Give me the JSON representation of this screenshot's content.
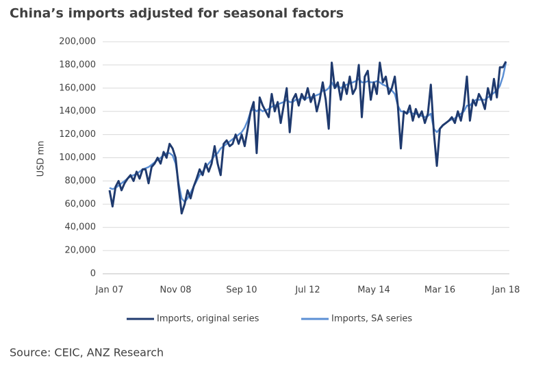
{
  "chart_data": {
    "type": "line",
    "title": "China’s imports adjusted for seasonal factors",
    "y_label": "USD mn",
    "source": "Source: CEIC, ANZ Research",
    "categories": [
      "Jan 07",
      null,
      null,
      null,
      null,
      null,
      null,
      null,
      null,
      null,
      null,
      null,
      null,
      null,
      null,
      null,
      null,
      null,
      null,
      null,
      null,
      null,
      "Nov 08",
      null,
      null,
      null,
      null,
      null,
      null,
      null,
      null,
      null,
      null,
      null,
      null,
      null,
      null,
      null,
      null,
      null,
      null,
      null,
      null,
      null,
      "Sep 10",
      null,
      null,
      null,
      null,
      null,
      null,
      null,
      null,
      null,
      null,
      null,
      null,
      null,
      null,
      null,
      null,
      null,
      null,
      null,
      null,
      null,
      "Jul 12",
      null,
      null,
      null,
      null,
      null,
      null,
      null,
      null,
      null,
      null,
      null,
      null,
      null,
      null,
      null,
      null,
      null,
      null,
      null,
      null,
      null,
      "May 14",
      null,
      null,
      null,
      null,
      null,
      null,
      null,
      null,
      null,
      null,
      null,
      null,
      null,
      null,
      null,
      null,
      null,
      null,
      null,
      null,
      null,
      "Mar 16",
      null,
      null,
      null,
      null,
      null,
      null,
      null,
      null,
      null,
      null,
      null,
      null,
      null,
      null,
      null,
      null,
      null,
      null,
      null,
      null,
      null,
      "Jan 18"
    ],
    "series": [
      {
        "name": "Imports, original series",
        "color": "#1f3a6e",
        "values": [
          72000,
          58000,
          75000,
          80000,
          72000,
          78000,
          82000,
          85000,
          80000,
          88000,
          82000,
          90000,
          90000,
          78000,
          92000,
          95000,
          100000,
          95000,
          105000,
          100000,
          112000,
          108000,
          100000,
          75000,
          52000,
          60000,
          72000,
          65000,
          75000,
          82000,
          90000,
          85000,
          95000,
          88000,
          95000,
          110000,
          95000,
          85000,
          112000,
          115000,
          110000,
          112000,
          120000,
          112000,
          120000,
          110000,
          125000,
          140000,
          148000,
          104000,
          152000,
          145000,
          140000,
          135000,
          155000,
          140000,
          148000,
          130000,
          145000,
          160000,
          122000,
          150000,
          155000,
          145000,
          155000,
          150000,
          160000,
          148000,
          155000,
          140000,
          150000,
          165000,
          150000,
          125000,
          182000,
          160000,
          165000,
          150000,
          165000,
          155000,
          170000,
          155000,
          160000,
          180000,
          135000,
          170000,
          175000,
          150000,
          165000,
          155000,
          182000,
          165000,
          170000,
          155000,
          160000,
          170000,
          145000,
          108000,
          140000,
          138000,
          145000,
          132000,
          142000,
          135000,
          140000,
          130000,
          138000,
          163000,
          122000,
          93000,
          125000,
          128000,
          130000,
          132000,
          135000,
          130000,
          140000,
          132000,
          145000,
          170000,
          132000,
          150000,
          145000,
          155000,
          150000,
          142000,
          160000,
          150000,
          168000,
          152000,
          178000,
          178000,
          183000
        ]
      },
      {
        "name": "Imports, SA series",
        "color": "#5b8fd4",
        "values": [
          74000,
          73000,
          74000,
          76000,
          78000,
          80000,
          82000,
          84000,
          85000,
          86000,
          88000,
          90000,
          91000,
          92000,
          94000,
          96000,
          98000,
          100000,
          102000,
          104000,
          104000,
          102000,
          95000,
          78000,
          65000,
          62000,
          65000,
          70000,
          75000,
          80000,
          85000,
          88000,
          92000,
          95000,
          98000,
          102000,
          104000,
          108000,
          110000,
          112000,
          114000,
          116000,
          118000,
          120000,
          122000,
          126000,
          132000,
          140000,
          142000,
          140000,
          142000,
          140000,
          141000,
          142000,
          144000,
          145000,
          146000,
          147000,
          148000,
          150000,
          148000,
          148000,
          150000,
          150000,
          152000,
          150000,
          152000,
          152000,
          153000,
          154000,
          155000,
          158000,
          158000,
          160000,
          165000,
          160000,
          162000,
          160000,
          162000,
          163000,
          164000,
          165000,
          166000,
          168000,
          165000,
          165000,
          166000,
          165000,
          165000,
          166000,
          165000,
          163000,
          162000,
          160000,
          158000,
          155000,
          145000,
          140000,
          140000,
          138000,
          140000,
          138000,
          138000,
          137000,
          136000,
          135000,
          136000,
          138000,
          125000,
          122000,
          125000,
          128000,
          130000,
          132000,
          133000,
          134000,
          136000,
          138000,
          140000,
          145000,
          145000,
          148000,
          150000,
          150000,
          150000,
          150000,
          152000,
          154000,
          156000,
          158000,
          162000,
          170000,
          182000
        ]
      }
    ],
    "ylim": [
      0,
      200000
    ],
    "yticks": [
      0,
      {
        "value": 20000,
        "label": "20,000"
      },
      {
        "value": 40000,
        "label": "40,000"
      },
      {
        "value": 60000,
        "label": "60,000"
      },
      {
        "value": 80000,
        "label": "80,000"
      },
      {
        "value": 100000,
        "label": "100,000"
      },
      {
        "value": 120000,
        "label": "120,000"
      },
      {
        "value": 140000,
        "label": "140,000"
      },
      {
        "value": 160000,
        "label": "160,000"
      },
      {
        "value": 180000,
        "label": "180,000"
      },
      {
        "value": 200000,
        "label": "200,000"
      }
    ],
    "grid": true,
    "legend": "bottom"
  }
}
